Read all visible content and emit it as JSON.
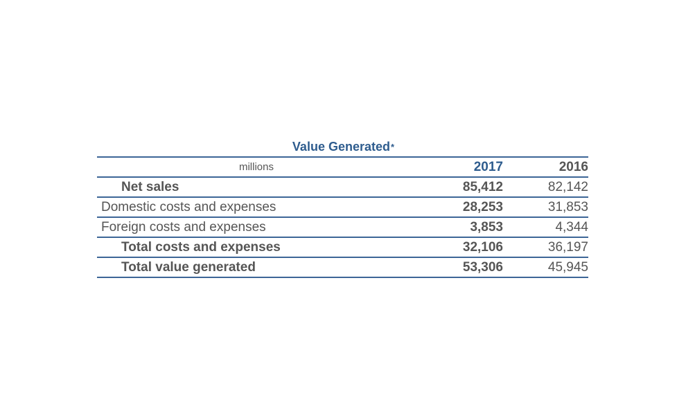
{
  "title": "Value Generated",
  "title_mark": "*",
  "header": {
    "unit": "millions",
    "col_2017": "2017",
    "col_2016": "2016"
  },
  "rows": [
    {
      "label": "Net sales",
      "v2017": "85,412",
      "v2016": "82,142"
    },
    {
      "label": "Domestic costs and expenses",
      "v2017": "28,253",
      "v2016": "31,853"
    },
    {
      "label": "Foreign costs and expenses",
      "v2017": "3,853",
      "v2016": "4,344"
    },
    {
      "label": "Total costs and expenses",
      "v2017": "32,106",
      "v2016": "36,197"
    },
    {
      "label": "Total value generated",
      "v2017": "53,306",
      "v2016": "45,945"
    }
  ],
  "colors": {
    "accent": "#2e5c8e",
    "rule": "#3c6596",
    "text": "#555555"
  }
}
